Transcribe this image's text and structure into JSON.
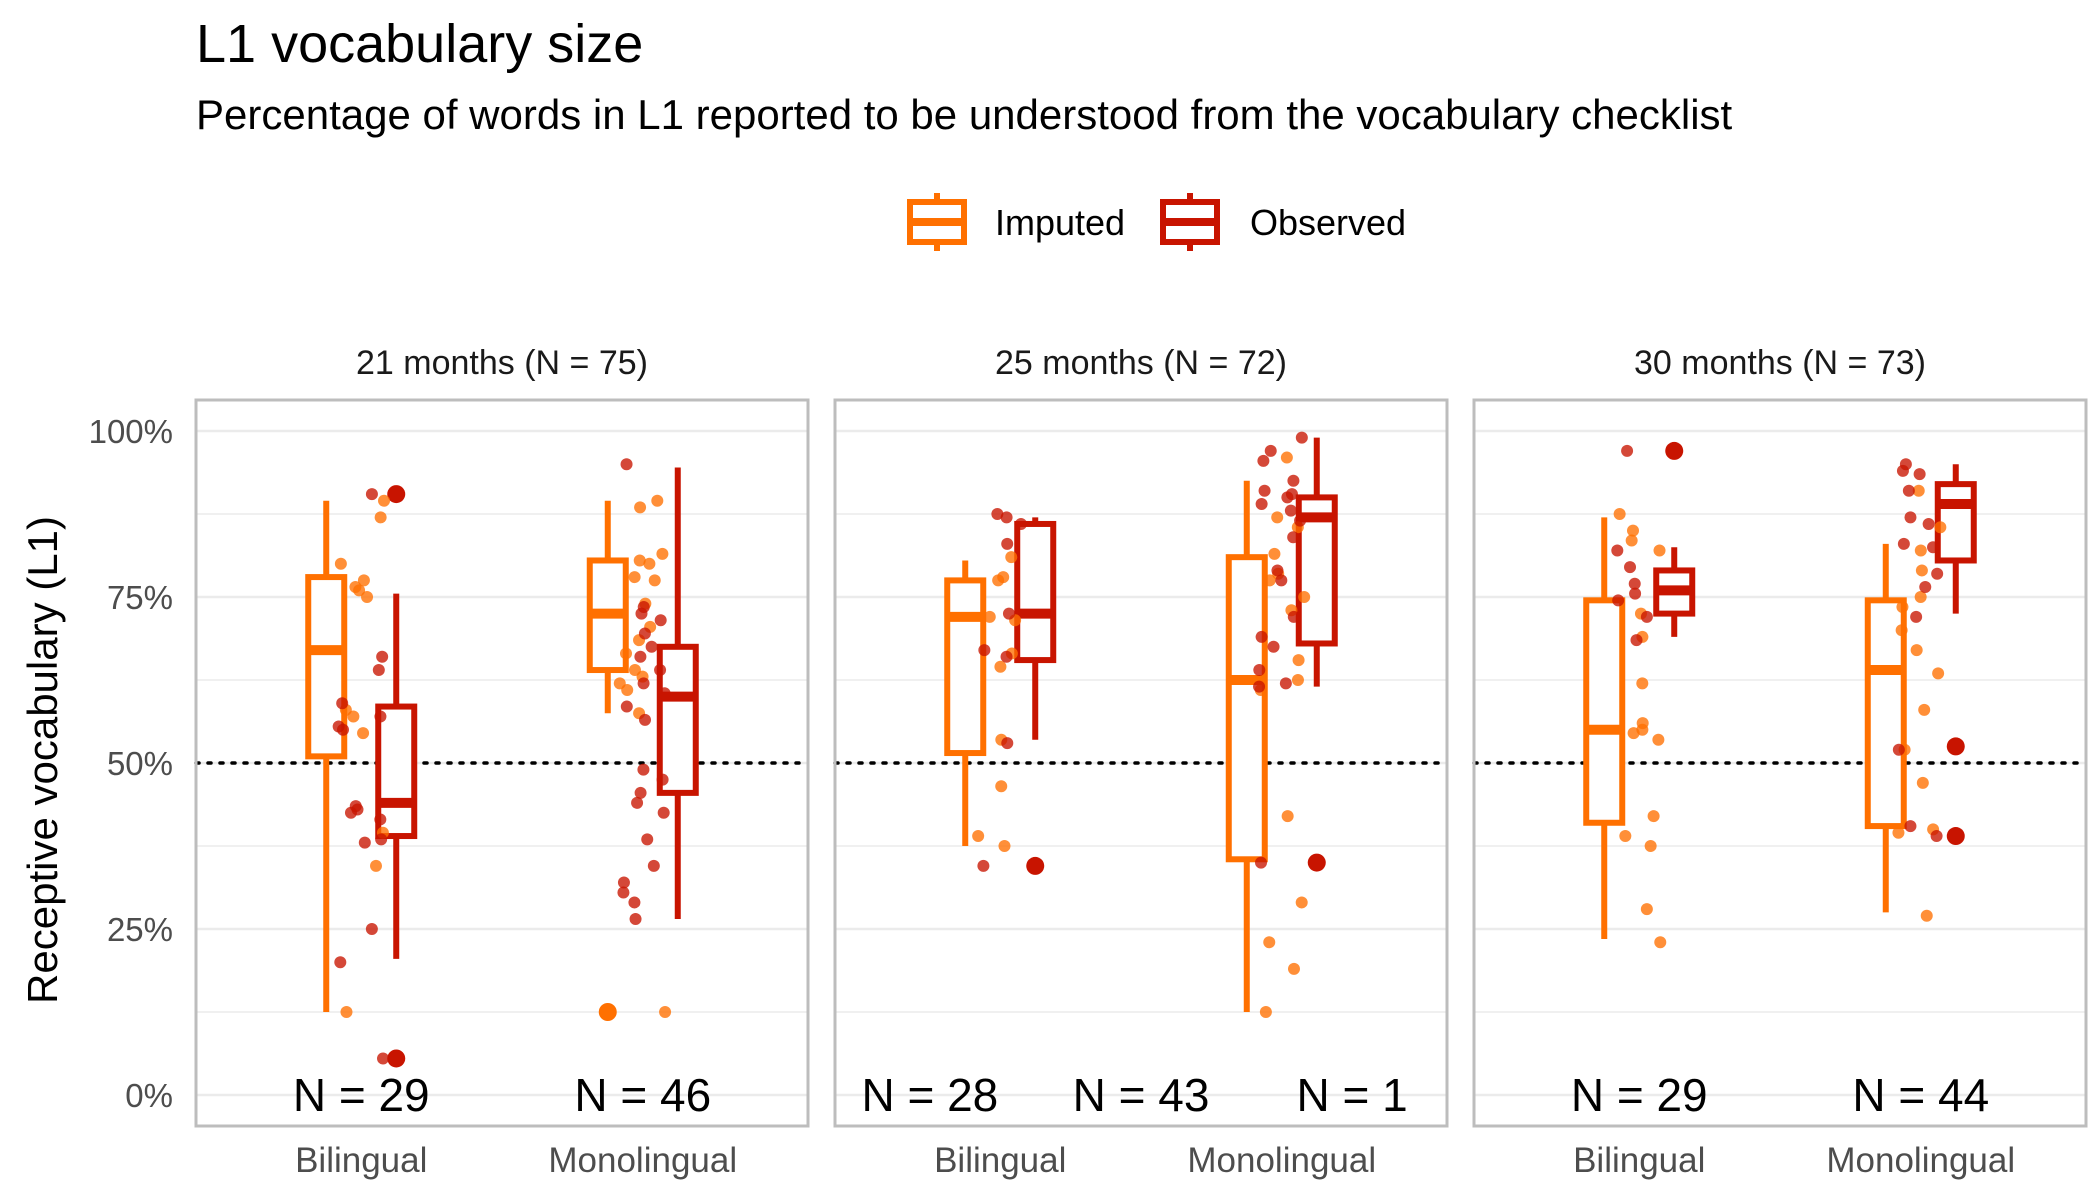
{
  "title": "L1 vocabulary size",
  "subtitle": "Percentage of words in L1 reported to be understood from the vocabulary checklist",
  "legend": [
    {
      "key": "imputed",
      "label": "Imputed",
      "color": "#FF7000"
    },
    {
      "key": "observed",
      "label": "Observed",
      "color": "#C81400"
    }
  ],
  "chart_data": {
    "type": "box-with-jitter",
    "ylabel": "Receptive vocabulary (L1)",
    "ylim": [
      0,
      100
    ],
    "yticks": [
      0,
      25,
      50,
      75,
      100
    ],
    "ytick_labels": [
      "0%",
      "25%",
      "50%",
      "75%",
      "100%"
    ],
    "reference_line": 50,
    "categories": [
      "Bilingual",
      "Monolingual"
    ],
    "panels": [
      {
        "label": "21 months (N = 75)",
        "n_labels": [
          {
            "text": "N = 29",
            "pos": 0
          },
          {
            "text": "N = 46",
            "pos": 1
          }
        ],
        "boxes": [
          {
            "cat": 0,
            "series": "imputed",
            "lw": 12.5,
            "q1": 51,
            "med": 67,
            "q3": 78,
            "upper": 89.5,
            "outliers": []
          },
          {
            "cat": 0,
            "series": "observed",
            "lw": 20.5,
            "q1": 39,
            "med": 44,
            "q3": 58.5,
            "upper": 75.5,
            "outliers": [
              5.5,
              90.5
            ]
          },
          {
            "cat": 1,
            "series": "imputed",
            "lw": 57.5,
            "q1": 64,
            "med": 72.5,
            "q3": 80.5,
            "upper": 89.5,
            "outliers": [
              12.5
            ]
          },
          {
            "cat": 1,
            "series": "observed",
            "lw": 26.5,
            "q1": 45.5,
            "med": 60,
            "q3": 67.5,
            "upper": 94.5,
            "outliers": []
          }
        ],
        "points": {
          "imputed": [
            [
              0,
              87
            ],
            [
              0,
              80
            ],
            [
              0,
              77.5
            ],
            [
              0,
              76.5
            ],
            [
              0,
              76
            ],
            [
              0,
              75
            ],
            [
              0,
              58
            ],
            [
              0,
              57
            ],
            [
              0,
              54.5
            ],
            [
              0,
              39.5
            ],
            [
              0,
              34.5
            ],
            [
              0,
              12.5
            ],
            [
              0,
              89.5
            ],
            [
              1,
              89.5
            ],
            [
              1,
              88.5
            ],
            [
              1,
              81.5
            ],
            [
              1,
              80.5
            ],
            [
              1,
              80
            ],
            [
              1,
              78
            ],
            [
              1,
              77.5
            ],
            [
              1,
              74
            ],
            [
              1,
              70.5
            ],
            [
              1,
              68.5
            ],
            [
              1,
              66.5
            ],
            [
              1,
              64
            ],
            [
              1,
              63
            ],
            [
              1,
              62
            ],
            [
              1,
              61
            ],
            [
              1,
              57.5
            ],
            [
              1,
              12.5
            ]
          ],
          "observed": [
            [
              0,
              90.5
            ],
            [
              0,
              66
            ],
            [
              0,
              64
            ],
            [
              0,
              59
            ],
            [
              0,
              57
            ],
            [
              0,
              55.5
            ],
            [
              0,
              55
            ],
            [
              0,
              43.5
            ],
            [
              0,
              43
            ],
            [
              0,
              42.5
            ],
            [
              0,
              41.5
            ],
            [
              0,
              38.5
            ],
            [
              0,
              38
            ],
            [
              0,
              25
            ],
            [
              0,
              20
            ],
            [
              0,
              5.5
            ],
            [
              1,
              95
            ],
            [
              1,
              73.5
            ],
            [
              1,
              72.5
            ],
            [
              1,
              71.5
            ],
            [
              1,
              69.5
            ],
            [
              1,
              67.5
            ],
            [
              1,
              66
            ],
            [
              1,
              64
            ],
            [
              1,
              62
            ],
            [
              1,
              60.5
            ],
            [
              1,
              58.5
            ],
            [
              1,
              56.5
            ],
            [
              1,
              49
            ],
            [
              1,
              47.5
            ],
            [
              1,
              45.5
            ],
            [
              1,
              44
            ],
            [
              1,
              42.5
            ],
            [
              1,
              38.5
            ],
            [
              1,
              34.5
            ],
            [
              1,
              32
            ],
            [
              1,
              30.5
            ],
            [
              1,
              29
            ],
            [
              1,
              26.5
            ]
          ]
        }
      },
      {
        "label": "25 months (N = 72)",
        "n_labels": [
          {
            "text": "N = 28",
            "pos": -0.25
          },
          {
            "text": "N = 43",
            "pos": 0.5
          },
          {
            "text": "N = 1",
            "pos": 1.25
          }
        ],
        "boxes": [
          {
            "cat": 0,
            "series": "imputed",
            "lw": 37.5,
            "q1": 51.5,
            "med": 72,
            "q3": 77.5,
            "upper": 80.5,
            "outliers": []
          },
          {
            "cat": 0,
            "series": "observed",
            "lw": 53.5,
            "q1": 65.5,
            "med": 72.5,
            "q3": 86,
            "upper": 87,
            "outliers": [
              34.5
            ]
          },
          {
            "cat": 1,
            "series": "imputed",
            "lw": 12.5,
            "q1": 35.5,
            "med": 62.5,
            "q3": 81,
            "upper": 92.5,
            "outliers": []
          },
          {
            "cat": 1,
            "series": "observed",
            "lw": 61.5,
            "q1": 68,
            "med": 87,
            "q3": 90,
            "upper": 99,
            "outliers": [
              35
            ]
          }
        ],
        "points": {
          "imputed": [
            [
              0,
              81
            ],
            [
              0,
              78
            ],
            [
              0,
              77.5
            ],
            [
              0,
              72
            ],
            [
              0,
              71.5
            ],
            [
              0,
              66.5
            ],
            [
              0,
              64.5
            ],
            [
              0,
              53.5
            ],
            [
              0,
              46.5
            ],
            [
              0,
              39
            ],
            [
              0,
              37.5
            ],
            [
              1,
              96
            ],
            [
              1,
              87
            ],
            [
              1,
              85.5
            ],
            [
              1,
              81.5
            ],
            [
              1,
              78.5
            ],
            [
              1,
              77.5
            ],
            [
              1,
              75
            ],
            [
              1,
              73
            ],
            [
              1,
              65.5
            ],
            [
              1,
              62.5
            ],
            [
              1,
              61
            ],
            [
              1,
              42
            ],
            [
              1,
              29
            ],
            [
              1,
              23
            ],
            [
              1,
              19
            ],
            [
              1,
              12.5
            ]
          ],
          "observed": [
            [
              0,
              87.5
            ],
            [
              0,
              87
            ],
            [
              0,
              86
            ],
            [
              0,
              83
            ],
            [
              0,
              72.5
            ],
            [
              0,
              67
            ],
            [
              0,
              66
            ],
            [
              0,
              53
            ],
            [
              0,
              34.5
            ],
            [
              1,
              99
            ],
            [
              1,
              97
            ],
            [
              1,
              95.5
            ],
            [
              1,
              92.5
            ],
            [
              1,
              91
            ],
            [
              1,
              90.5
            ],
            [
              1,
              90
            ],
            [
              1,
              89
            ],
            [
              1,
              88
            ],
            [
              1,
              86.5
            ],
            [
              1,
              84
            ],
            [
              1,
              79
            ],
            [
              1,
              77.5
            ],
            [
              1,
              72
            ],
            [
              1,
              69
            ],
            [
              1,
              67.5
            ],
            [
              1,
              64
            ],
            [
              1,
              62
            ],
            [
              1,
              61.5
            ],
            [
              1,
              35
            ]
          ]
        }
      },
      {
        "label": "30 months (N = 73)",
        "n_labels": [
          {
            "text": "N = 29",
            "pos": 0
          },
          {
            "text": "N = 44",
            "pos": 1
          }
        ],
        "boxes": [
          {
            "cat": 0,
            "series": "imputed",
            "lw": 23.5,
            "q1": 41,
            "med": 55,
            "q3": 74.5,
            "upper": 87,
            "outliers": []
          },
          {
            "cat": 0,
            "series": "observed",
            "lw": 69,
            "q1": 72.5,
            "med": 76,
            "q3": 79,
            "upper": 82.5,
            "outliers": [
              97
            ]
          },
          {
            "cat": 1,
            "series": "imputed",
            "lw": 27.5,
            "q1": 40.5,
            "med": 64,
            "q3": 74.5,
            "upper": 83,
            "outliers": []
          },
          {
            "cat": 1,
            "series": "observed",
            "lw": 72.5,
            "q1": 80.5,
            "med": 89,
            "q3": 92,
            "upper": 95,
            "outliers": [
              52.5,
              39
            ]
          }
        ],
        "points": {
          "imputed": [
            [
              0,
              87.5
            ],
            [
              0,
              85
            ],
            [
              0,
              83.5
            ],
            [
              0,
              82
            ],
            [
              0,
              72.5
            ],
            [
              0,
              69
            ],
            [
              0,
              62
            ],
            [
              0,
              56
            ],
            [
              0,
              55
            ],
            [
              0,
              54.5
            ],
            [
              0,
              53.5
            ],
            [
              0,
              42
            ],
            [
              0,
              39
            ],
            [
              0,
              37.5
            ],
            [
              0,
              28
            ],
            [
              0,
              23
            ],
            [
              1,
              91
            ],
            [
              1,
              85.5
            ],
            [
              1,
              82
            ],
            [
              1,
              79
            ],
            [
              1,
              75
            ],
            [
              1,
              73.5
            ],
            [
              1,
              70
            ],
            [
              1,
              67
            ],
            [
              1,
              63.5
            ],
            [
              1,
              58
            ],
            [
              1,
              52
            ],
            [
              1,
              47
            ],
            [
              1,
              40
            ],
            [
              1,
              39.5
            ],
            [
              1,
              27
            ]
          ],
          "observed": [
            [
              0,
              97
            ],
            [
              0,
              82
            ],
            [
              0,
              79.5
            ],
            [
              0,
              77
            ],
            [
              0,
              75.5
            ],
            [
              0,
              74.5
            ],
            [
              0,
              72
            ],
            [
              0,
              68.5
            ],
            [
              1,
              95
            ],
            [
              1,
              94
            ],
            [
              1,
              93.5
            ],
            [
              1,
              91
            ],
            [
              1,
              87
            ],
            [
              1,
              86
            ],
            [
              1,
              83
            ],
            [
              1,
              82.5
            ],
            [
              1,
              78.5
            ],
            [
              1,
              76.5
            ],
            [
              1,
              72
            ],
            [
              1,
              52
            ],
            [
              1,
              40.5
            ],
            [
              1,
              39
            ]
          ]
        }
      }
    ]
  }
}
